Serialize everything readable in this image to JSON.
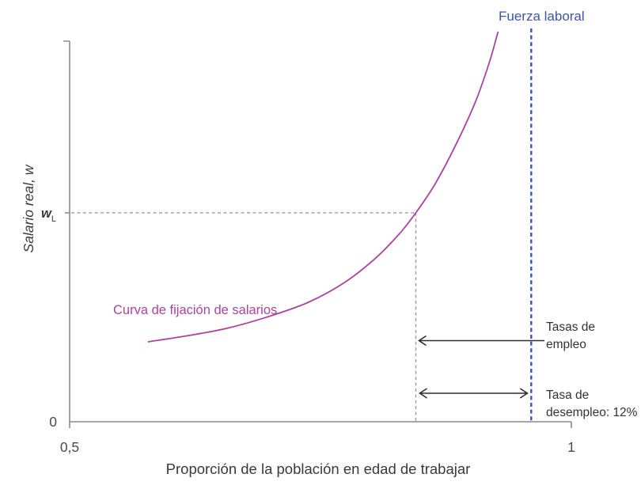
{
  "labels": {
    "labor_force": "Fuerza laboral",
    "wage_curve": "Curva de fijación de salarios",
    "employment_rate_line1": "Tasas de",
    "employment_rate_line2": "empleo",
    "unemployment_line1": "Tasa de",
    "unemployment_line2": "desempleo: 12%"
  },
  "axes": {
    "x_label": "Proporción de la población en edad de trabajar",
    "y_label": "Salario real, w",
    "y_origin": "0",
    "y_tick_main": "w",
    "y_tick_sub": "L",
    "x_tick_labels": [
      "0,5",
      "1"
    ]
  },
  "colors": {
    "curve": "#a844a0",
    "labor_force": "#3e54ab",
    "dash_gray": "#9b9b9b",
    "axis": "#8a8a8a",
    "annotation": "#333333"
  },
  "chart_data": {
    "type": "line",
    "title": "",
    "xlabel": "Proporción de la población en edad de trabajar",
    "ylabel": "Salario real, w",
    "xlim": [
      0.5,
      1.0
    ],
    "x_tick_values": [
      0.5,
      1.0
    ],
    "x_tick_labels": [
      "0,5",
      "1"
    ],
    "grid": false,
    "legend": "none",
    "series": [
      {
        "name": "Curva de fijación de salarios",
        "color": "#a844a0",
        "points": [
          [
            0.578,
            0.21
          ],
          [
            0.62,
            0.227
          ],
          [
            0.659,
            0.247
          ],
          [
            0.699,
            0.277
          ],
          [
            0.738,
            0.314
          ],
          [
            0.774,
            0.366
          ],
          [
            0.805,
            0.43
          ],
          [
            0.829,
            0.495
          ],
          [
            0.845,
            0.549
          ],
          [
            0.864,
            0.624
          ],
          [
            0.884,
            0.723
          ],
          [
            0.904,
            0.838
          ],
          [
            0.918,
            0.942
          ],
          [
            0.927,
            1.025
          ]
        ]
      }
    ],
    "annotations": {
      "labor_force_x": 0.96,
      "employment_x": 0.845,
      "w_l": 0.549,
      "w_l_label": "wL",
      "unemployment_rate_label": "12%",
      "employment_arrow": "from labor-force text leftward to employment line",
      "unemployment_arrow": "double arrow between employment line and labor force line"
    }
  }
}
